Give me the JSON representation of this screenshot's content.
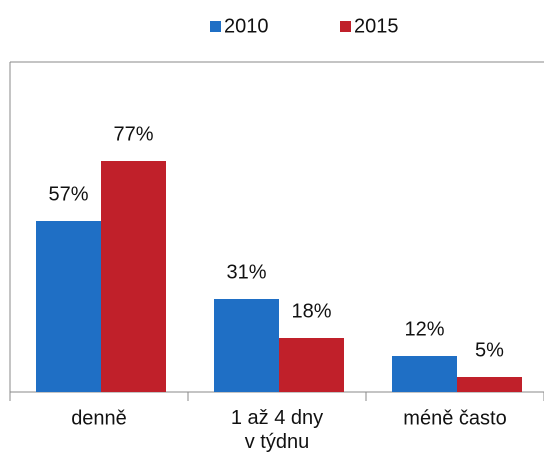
{
  "chart_data": {
    "type": "bar",
    "categories": [
      "denně",
      "1 až 4 dny\nv týdnu",
      "méně často"
    ],
    "series": [
      {
        "name": "2010",
        "color": "#1f6fc5",
        "values": [
          57,
          31,
          12
        ],
        "value_labels": [
          "57%",
          "31%",
          "12%"
        ]
      },
      {
        "name": "2015",
        "color": "#c0202a",
        "values": [
          77,
          18,
          5
        ],
        "value_labels": [
          "77%",
          "18%",
          "5%"
        ]
      }
    ],
    "ylim": [
      0,
      110
    ],
    "legend": "top"
  }
}
